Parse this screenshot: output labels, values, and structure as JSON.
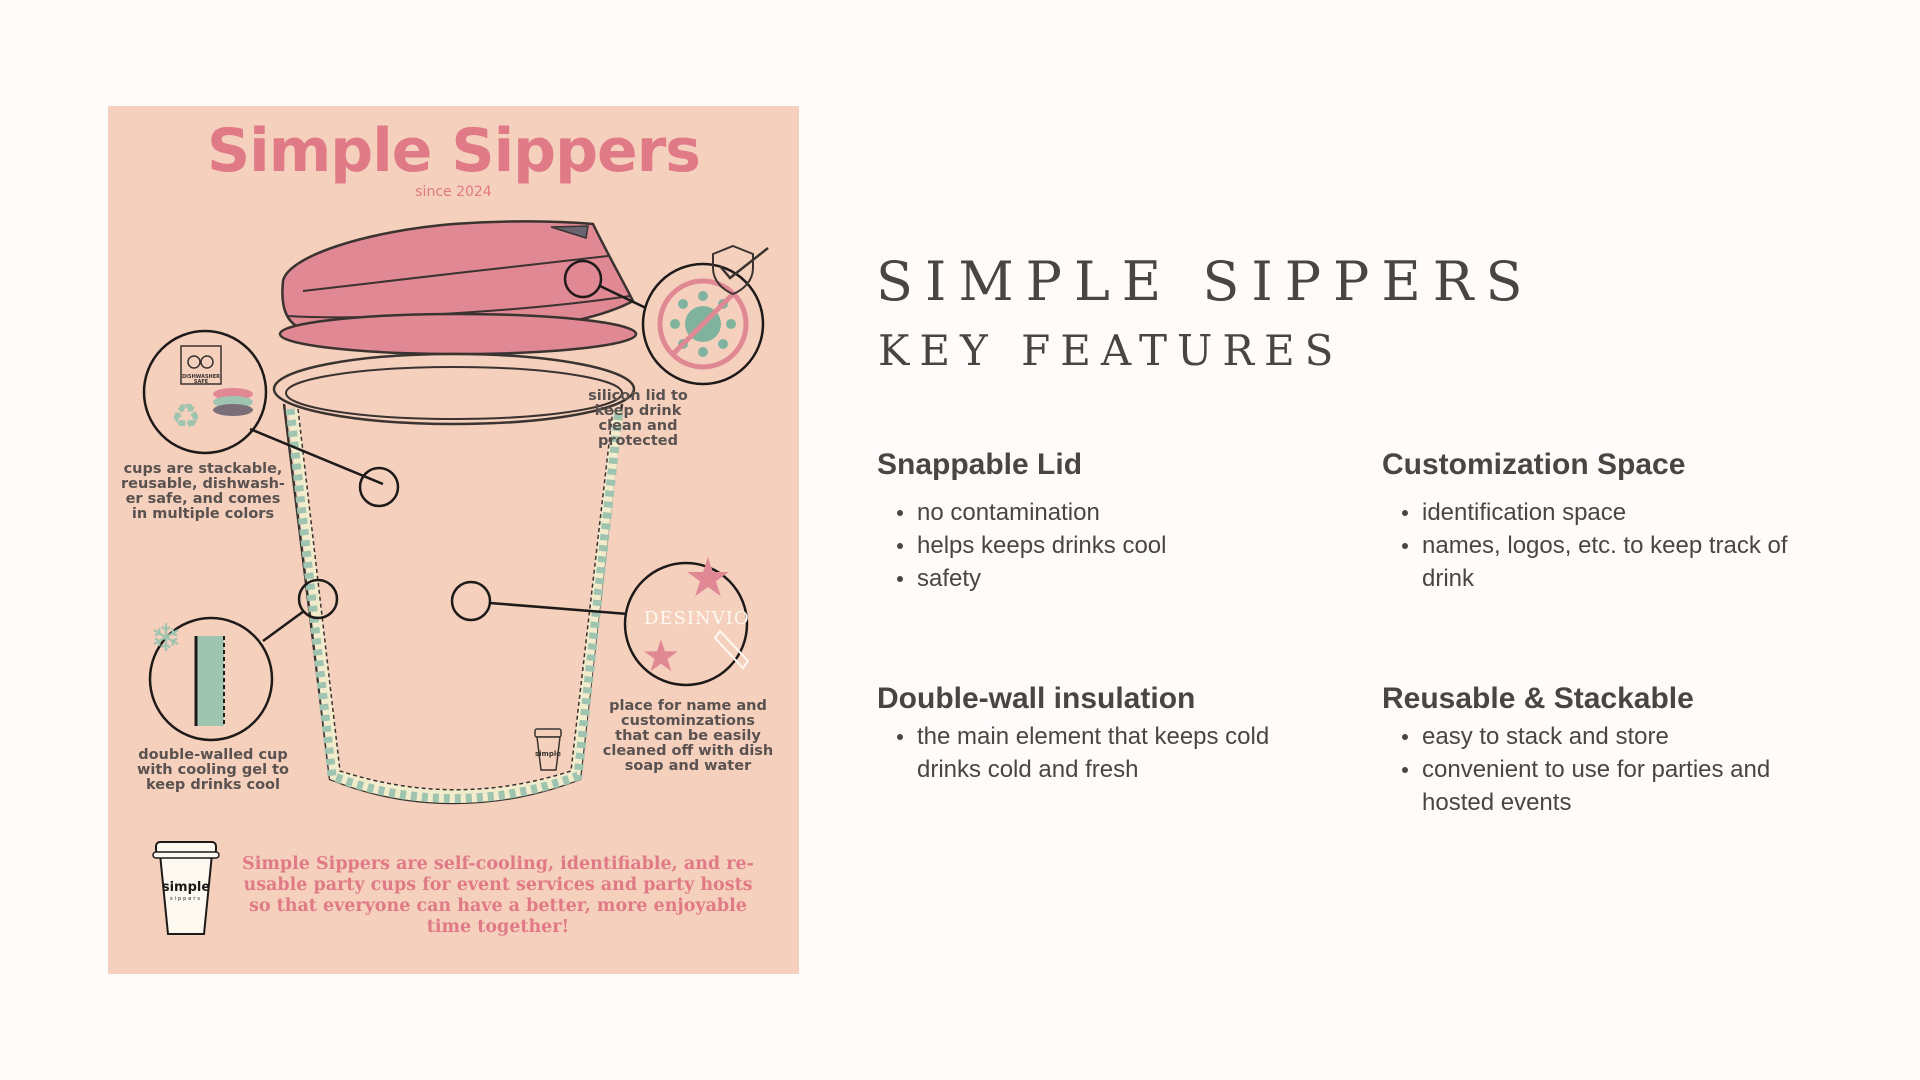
{
  "poster": {
    "title": "Simple Sippers",
    "since": "since 2024",
    "callout_lid": "silicon lid to\nkeep drink\nclean and\nprotected",
    "callout_stackable": "cups are stackable,\nreusable, dishwash-\ner safe, and comes\nin multiple colors",
    "callout_double_wall": "double-walled cup\nwith cooling gel to\nkeep drinks cool",
    "callout_name_space": "place for name and\ncustominzations\nthat can be easily\ncleaned off with dish\nsoap and water",
    "badge_dishwasher": "DISHWASHER SAFE",
    "name_sample": "DESINVIO",
    "logo_text": "simple",
    "logo_sub": "sippers",
    "tagline": "Simple Sippers are self-cooling, identifiable, and re-\nusable party cups for event services and party hosts\nso that everyone can have a better, more enjoyable\ntime together!"
  },
  "heading": {
    "line1": "SIMPLE SIPPERS",
    "line2": "KEY FEATURES"
  },
  "features": [
    {
      "title": "Snappable Lid",
      "bullets": [
        "no contamination",
        "helps keeps drinks cool",
        "safety"
      ]
    },
    {
      "title": "Customization Space",
      "bullets": [
        "identification space",
        "names, logos, etc. to keep track of drink"
      ]
    },
    {
      "title": "Double-wall insulation",
      "bullets": [
        "the main element that keeps cold drinks cold and fresh"
      ]
    },
    {
      "title": "Reusable & Stackable",
      "bullets": [
        "easy to stack and store",
        "convenient to use for parties and hosted events"
      ]
    }
  ],
  "colors": {
    "poster_bg": "#f5d0bd",
    "accent_pink": "#e07a86",
    "gel_green": "#9fc4b0",
    "text_dark": "#4a4540"
  }
}
